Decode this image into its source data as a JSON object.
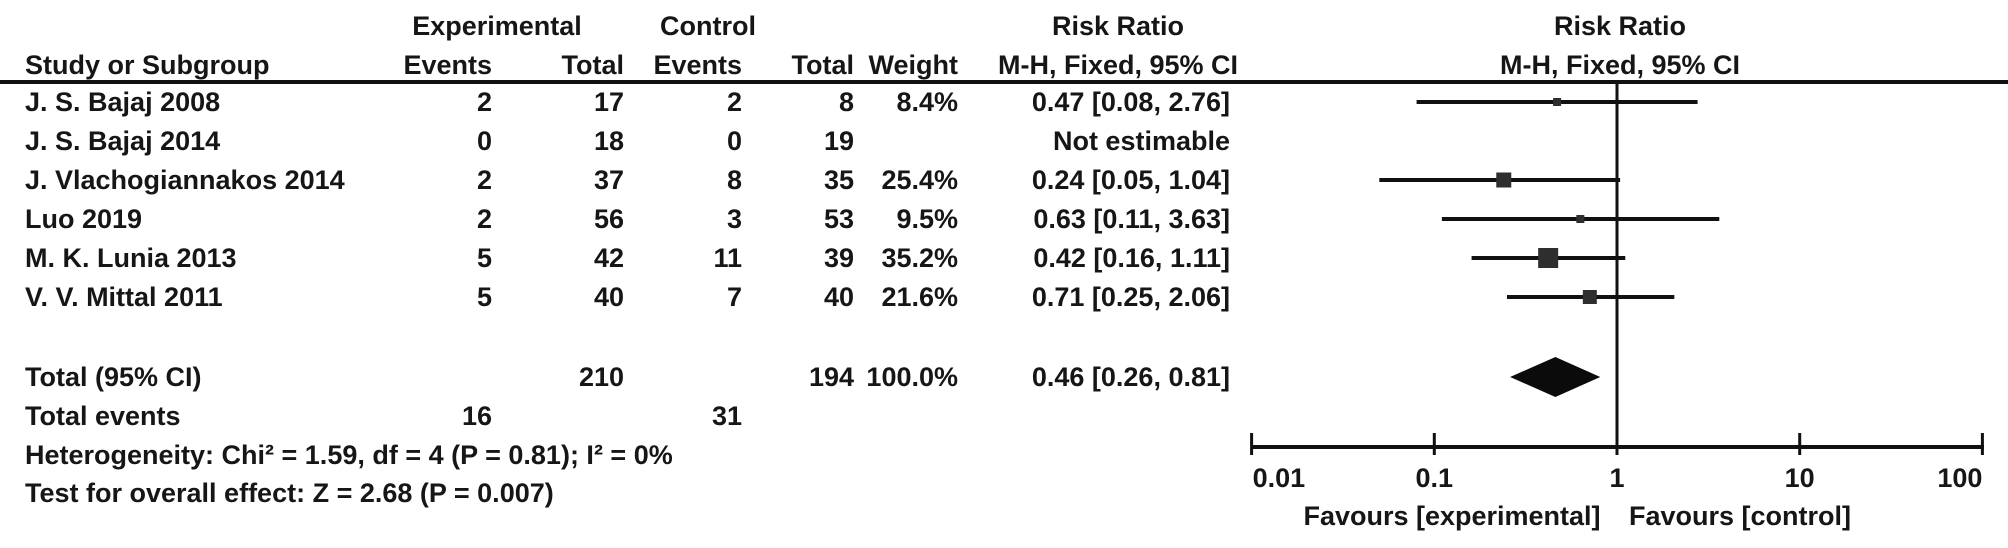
{
  "table": {
    "group_headers": {
      "experimental": "Experimental",
      "control": "Control"
    },
    "columns": {
      "study": "Study or Subgroup",
      "events": "Events",
      "total": "Total",
      "weight": "Weight"
    },
    "risk_ratio_header": {
      "title": "Risk Ratio",
      "subtitle": "M-H, Fixed, 95% CI"
    },
    "rows": [
      {
        "study": "J. S. Bajaj 2008",
        "exp_events": "2",
        "exp_total": "17",
        "ctrl_events": "2",
        "ctrl_total": "8",
        "weight": "8.4%",
        "ci": "0.47 [0.08, 2.76]"
      },
      {
        "study": "J. S. Bajaj 2014",
        "exp_events": "0",
        "exp_total": "18",
        "ctrl_events": "0",
        "ctrl_total": "19",
        "weight": "",
        "ci": "Not estimable"
      },
      {
        "study": "J. Vlachogiannakos 2014",
        "exp_events": "2",
        "exp_total": "37",
        "ctrl_events": "8",
        "ctrl_total": "35",
        "weight": "25.4%",
        "ci": "0.24 [0.05, 1.04]"
      },
      {
        "study": "Luo 2019",
        "exp_events": "2",
        "exp_total": "56",
        "ctrl_events": "3",
        "ctrl_total": "53",
        "weight": "9.5%",
        "ci": "0.63 [0.11, 3.63]"
      },
      {
        "study": "M. K. Lunia 2013",
        "exp_events": "5",
        "exp_total": "42",
        "ctrl_events": "11",
        "ctrl_total": "39",
        "weight": "35.2%",
        "ci": "0.42 [0.16, 1.11]"
      },
      {
        "study": "V. V. Mittal 2011",
        "exp_events": "5",
        "exp_total": "40",
        "ctrl_events": "7",
        "ctrl_total": "40",
        "weight": "21.6%",
        "ci": "0.71 [0.25, 2.06]"
      }
    ],
    "total_row": {
      "label": "Total (95% CI)",
      "exp_total": "210",
      "ctrl_total": "194",
      "weight": "100.0%",
      "ci": "0.46 [0.26, 0.81]"
    },
    "total_events": {
      "label": "Total events",
      "exp": "16",
      "ctrl": "31"
    },
    "heterogeneity": "Heterogeneity: Chi² = 1.59, df = 4 (P = 0.81); I² = 0%",
    "overall_effect": "Test for overall effect: Z = 2.68 (P = 0.007)"
  },
  "chart_data": {
    "type": "scatter",
    "subtype": "forest-plot",
    "effect_measure": "Risk Ratio (M-H, Fixed, 95% CI)",
    "x_axis": {
      "scale": "log10",
      "range": [
        0.01,
        100
      ],
      "ticks": [
        0.01,
        0.1,
        1,
        10,
        100
      ],
      "tick_labels": [
        "0.01",
        "0.1",
        "1",
        "10",
        "100"
      ]
    },
    "null_line_value": 1,
    "studies": [
      {
        "name": "J. S. Bajaj 2008",
        "rr": 0.47,
        "ci_low": 0.08,
        "ci_high": 2.76,
        "weight_pct": 8.4,
        "estimable": true
      },
      {
        "name": "J. S. Bajaj 2014",
        "rr": null,
        "ci_low": null,
        "ci_high": null,
        "weight_pct": null,
        "estimable": false
      },
      {
        "name": "J. Vlachogiannakos 2014",
        "rr": 0.24,
        "ci_low": 0.05,
        "ci_high": 1.04,
        "weight_pct": 25.4,
        "estimable": true
      },
      {
        "name": "Luo 2019",
        "rr": 0.63,
        "ci_low": 0.11,
        "ci_high": 3.63,
        "weight_pct": 9.5,
        "estimable": true
      },
      {
        "name": "M. K. Lunia 2013",
        "rr": 0.42,
        "ci_low": 0.16,
        "ci_high": 1.11,
        "weight_pct": 35.2,
        "estimable": true
      },
      {
        "name": "V. V. Mittal 2011",
        "rr": 0.71,
        "ci_low": 0.25,
        "ci_high": 2.06,
        "weight_pct": 21.6,
        "estimable": true
      }
    ],
    "pooled": {
      "rr": 0.46,
      "ci_low": 0.26,
      "ci_high": 0.81
    },
    "favours_left": "Favours [experimental]",
    "favours_right": "Favours [control]"
  },
  "colors": {
    "text": "#161616",
    "line": "#111111",
    "square": "#2e2e2e",
    "diamond": "#0b0b0b",
    "background": "#ffffff"
  }
}
